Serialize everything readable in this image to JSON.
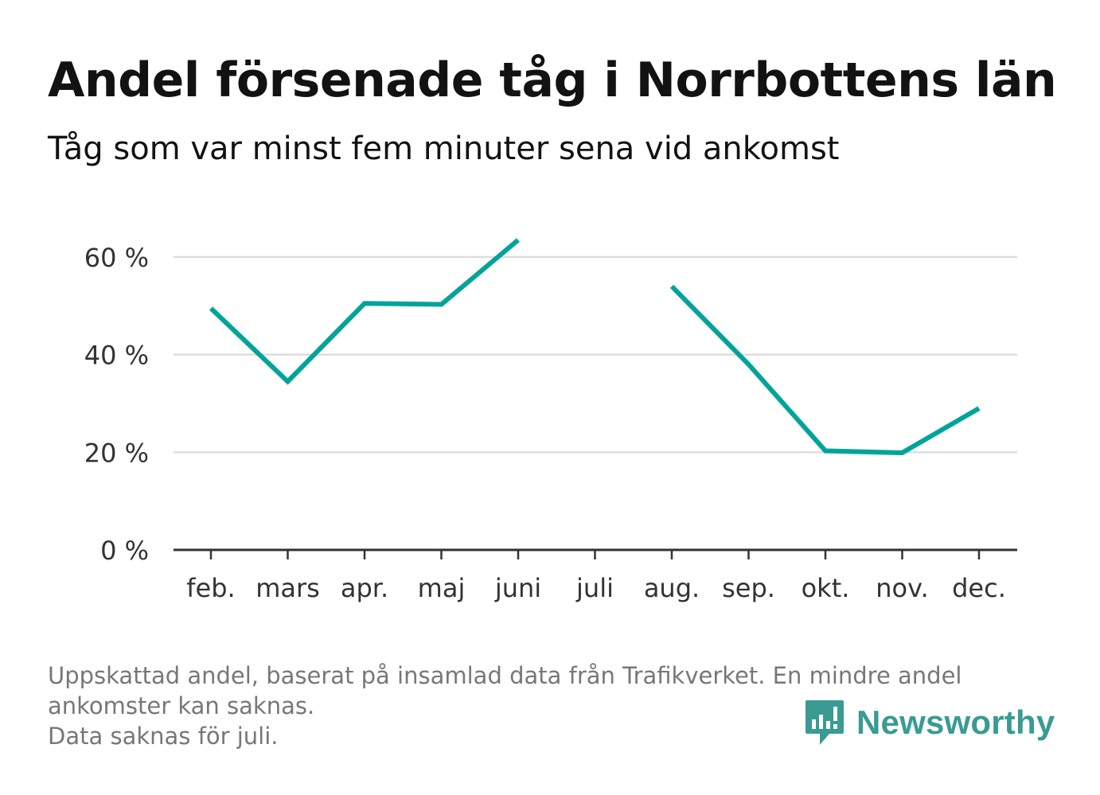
{
  "header": {
    "title": "Andel försenade tåg i Norrbottens län",
    "subtitle": "Tåg som var minst fem minuter sena vid ankomst"
  },
  "chart_data": {
    "type": "line",
    "categories": [
      "feb.",
      "mars",
      "apr.",
      "maj",
      "juni",
      "juli",
      "aug.",
      "sep.",
      "okt.",
      "nov.",
      "dec."
    ],
    "series": [
      {
        "values": [
          49.5,
          34.5,
          50.5,
          50.3,
          63.5,
          null,
          54,
          38,
          20.3,
          19.9,
          29
        ]
      }
    ],
    "y_ticks": [
      0,
      20,
      40,
      60
    ],
    "y_tick_labels": [
      "0 %",
      "20 %",
      "40 %",
      "60 %"
    ],
    "ylim": [
      0,
      70
    ],
    "grid": true,
    "line_color": "#00a49a"
  },
  "footer": {
    "notes": [
      "Uppskattad andel, baserat på insamlad data från Trafikverket. En mindre andel",
      "ankomster kan saknas.",
      "Data saknas för juli."
    ]
  },
  "brand": {
    "name": "Newsworthy",
    "icon": "newsworthy-logo-icon",
    "color": "#3a9a94"
  }
}
